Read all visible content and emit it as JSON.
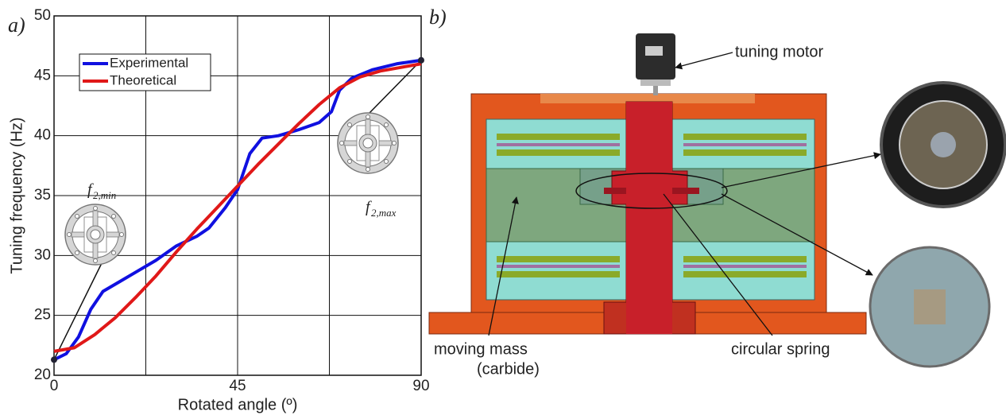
{
  "chart_data": {
    "type": "line",
    "panel_label": "a)",
    "xlabel": "Rotated angle (º)",
    "ylabel": "Tuning frequency (Hz)",
    "xlim": [
      0,
      90
    ],
    "ylim": [
      20,
      50
    ],
    "xticks": [
      0,
      45,
      90
    ],
    "yticks": [
      20,
      25,
      30,
      35,
      40,
      45,
      50
    ],
    "xgrid_lines": [
      0,
      22.5,
      45,
      67.5,
      90
    ],
    "grid": true,
    "legend": "upper left",
    "series": [
      {
        "name": "Experimental",
        "color": "#1010e0",
        "x": [
          0,
          3,
          6,
          9,
          12,
          16,
          20,
          25,
          30,
          35,
          38,
          42,
          45,
          48,
          51,
          55,
          60,
          65,
          68,
          70,
          73,
          78,
          84,
          90
        ],
        "values": [
          21.3,
          21.8,
          23.2,
          25.5,
          27,
          27.8,
          28.6,
          29.6,
          30.8,
          31.6,
          32.3,
          34,
          35.5,
          38.5,
          39.8,
          40,
          40.5,
          41.1,
          42,
          43.8,
          44.8,
          45.5,
          46,
          46.3
        ]
      },
      {
        "name": "Theoretical",
        "color": "#e01818",
        "x": [
          0,
          5,
          10,
          15,
          20,
          25,
          30,
          35,
          40,
          45,
          50,
          55,
          60,
          65,
          70,
          75,
          80,
          85,
          90
        ],
        "values": [
          22,
          22.3,
          23.4,
          24.8,
          26.5,
          28.3,
          30.3,
          32.2,
          34,
          35.8,
          37.6,
          39.3,
          41,
          42.6,
          44,
          44.9,
          45.4,
          45.7,
          46
        ]
      }
    ],
    "annotations": [
      {
        "text": "f",
        "subscript": "2,min"
      },
      {
        "text": "f",
        "subscript": "2,max"
      }
    ]
  },
  "diagram": {
    "panel_label": "b)",
    "labels": {
      "motor": "tuning motor",
      "mass": "moving mass",
      "mass_material": "(carbide)",
      "spring": "circular spring"
    }
  }
}
